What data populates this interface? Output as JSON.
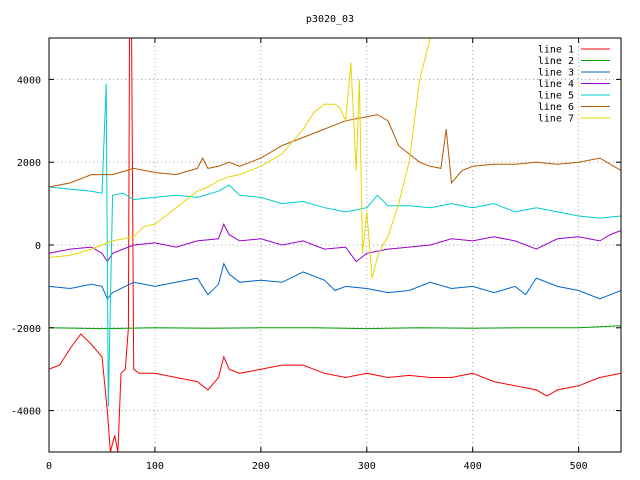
{
  "chart_data": {
    "type": "line",
    "title": "p3020_03",
    "xlabel": "",
    "ylabel": "",
    "xlim": [
      0,
      540
    ],
    "ylim": [
      -5000,
      5000
    ],
    "x_ticks": [
      0,
      100,
      200,
      300,
      400,
      500
    ],
    "y_ticks": [
      -4000,
      -2000,
      0,
      2000,
      4000
    ],
    "grid": true,
    "legend_position": "top-right",
    "series": [
      {
        "name": "line 1",
        "color": "#ff0000",
        "points": [
          [
            0,
            -3000
          ],
          [
            10,
            -2900
          ],
          [
            20,
            -2500
          ],
          [
            30,
            -2150
          ],
          [
            40,
            -2400
          ],
          [
            50,
            -2700
          ],
          [
            55,
            -4000
          ],
          [
            58,
            -5000
          ],
          [
            62,
            -4600
          ],
          [
            65,
            -5000
          ],
          [
            68,
            -3100
          ],
          [
            72,
            -3000
          ],
          [
            75,
            -2000
          ],
          [
            76,
            5000
          ],
          [
            78,
            5000
          ],
          [
            80,
            -3000
          ],
          [
            85,
            -3100
          ],
          [
            100,
            -3100
          ],
          [
            120,
            -3200
          ],
          [
            140,
            -3300
          ],
          [
            150,
            -3500
          ],
          [
            160,
            -3200
          ],
          [
            165,
            -2700
          ],
          [
            170,
            -3000
          ],
          [
            180,
            -3100
          ],
          [
            200,
            -3000
          ],
          [
            220,
            -2900
          ],
          [
            240,
            -2900
          ],
          [
            260,
            -3100
          ],
          [
            280,
            -3200
          ],
          [
            300,
            -3100
          ],
          [
            320,
            -3200
          ],
          [
            340,
            -3150
          ],
          [
            360,
            -3200
          ],
          [
            380,
            -3200
          ],
          [
            400,
            -3100
          ],
          [
            420,
            -3300
          ],
          [
            440,
            -3400
          ],
          [
            460,
            -3500
          ],
          [
            470,
            -3650
          ],
          [
            480,
            -3500
          ],
          [
            500,
            -3400
          ],
          [
            520,
            -3200
          ],
          [
            540,
            -3100
          ]
        ]
      },
      {
        "name": "line 2",
        "color": "#00a000",
        "points": [
          [
            0,
            -2000
          ],
          [
            50,
            -2020
          ],
          [
            100,
            -2000
          ],
          [
            150,
            -2010
          ],
          [
            200,
            -2000
          ],
          [
            250,
            -2000
          ],
          [
            300,
            -2020
          ],
          [
            350,
            -2000
          ],
          [
            400,
            -2010
          ],
          [
            450,
            -2000
          ],
          [
            500,
            -2000
          ],
          [
            540,
            -1950
          ]
        ]
      },
      {
        "name": "line 3",
        "color": "#0066cc",
        "points": [
          [
            0,
            -1000
          ],
          [
            20,
            -1050
          ],
          [
            40,
            -950
          ],
          [
            50,
            -1000
          ],
          [
            55,
            -1300
          ],
          [
            60,
            -1150
          ],
          [
            80,
            -900
          ],
          [
            100,
            -1000
          ],
          [
            120,
            -900
          ],
          [
            140,
            -800
          ],
          [
            150,
            -1200
          ],
          [
            160,
            -950
          ],
          [
            165,
            -450
          ],
          [
            170,
            -700
          ],
          [
            180,
            -900
          ],
          [
            200,
            -850
          ],
          [
            220,
            -900
          ],
          [
            240,
            -650
          ],
          [
            260,
            -850
          ],
          [
            270,
            -1100
          ],
          [
            280,
            -1000
          ],
          [
            300,
            -1050
          ],
          [
            320,
            -1150
          ],
          [
            340,
            -1100
          ],
          [
            360,
            -900
          ],
          [
            380,
            -1050
          ],
          [
            400,
            -1000
          ],
          [
            420,
            -1150
          ],
          [
            440,
            -1000
          ],
          [
            450,
            -1200
          ],
          [
            460,
            -800
          ],
          [
            480,
            -1000
          ],
          [
            500,
            -1100
          ],
          [
            520,
            -1300
          ],
          [
            530,
            -1200
          ],
          [
            540,
            -1100
          ]
        ]
      },
      {
        "name": "line 4",
        "color": "#9900cc",
        "points": [
          [
            0,
            -200
          ],
          [
            20,
            -100
          ],
          [
            40,
            -50
          ],
          [
            50,
            -200
          ],
          [
            55,
            -400
          ],
          [
            60,
            -200
          ],
          [
            70,
            -100
          ],
          [
            80,
            0
          ],
          [
            100,
            50
          ],
          [
            120,
            -50
          ],
          [
            140,
            100
          ],
          [
            160,
            150
          ],
          [
            165,
            500
          ],
          [
            170,
            250
          ],
          [
            180,
            100
          ],
          [
            200,
            150
          ],
          [
            220,
            0
          ],
          [
            240,
            100
          ],
          [
            260,
            -100
          ],
          [
            280,
            -50
          ],
          [
            290,
            -400
          ],
          [
            300,
            -200
          ],
          [
            320,
            -100
          ],
          [
            340,
            -50
          ],
          [
            360,
            0
          ],
          [
            380,
            150
          ],
          [
            400,
            100
          ],
          [
            420,
            200
          ],
          [
            440,
            100
          ],
          [
            460,
            -100
          ],
          [
            480,
            150
          ],
          [
            500,
            200
          ],
          [
            520,
            100
          ],
          [
            530,
            250
          ],
          [
            540,
            350
          ]
        ]
      },
      {
        "name": "line 5",
        "color": "#00cccc",
        "points": [
          [
            0,
            1400
          ],
          [
            20,
            1350
          ],
          [
            40,
            1300
          ],
          [
            50,
            1250
          ],
          [
            54,
            3900
          ],
          [
            56,
            -3900
          ],
          [
            60,
            1200
          ],
          [
            70,
            1250
          ],
          [
            80,
            1100
          ],
          [
            100,
            1150
          ],
          [
            120,
            1200
          ],
          [
            140,
            1150
          ],
          [
            160,
            1300
          ],
          [
            170,
            1450
          ],
          [
            180,
            1200
          ],
          [
            200,
            1150
          ],
          [
            220,
            1000
          ],
          [
            240,
            1050
          ],
          [
            260,
            900
          ],
          [
            280,
            800
          ],
          [
            300,
            900
          ],
          [
            310,
            1200
          ],
          [
            320,
            950
          ],
          [
            340,
            950
          ],
          [
            360,
            900
          ],
          [
            380,
            1000
          ],
          [
            400,
            900
          ],
          [
            420,
            1000
          ],
          [
            440,
            800
          ],
          [
            460,
            900
          ],
          [
            480,
            800
          ],
          [
            500,
            700
          ],
          [
            520,
            650
          ],
          [
            540,
            700
          ]
        ]
      },
      {
        "name": "line 6",
        "color": "#b35900",
        "points": [
          [
            0,
            1400
          ],
          [
            20,
            1500
          ],
          [
            40,
            1700
          ],
          [
            60,
            1700
          ],
          [
            80,
            1850
          ],
          [
            100,
            1750
          ],
          [
            120,
            1700
          ],
          [
            140,
            1850
          ],
          [
            145,
            2100
          ],
          [
            150,
            1850
          ],
          [
            160,
            1900
          ],
          [
            170,
            2000
          ],
          [
            180,
            1900
          ],
          [
            200,
            2100
          ],
          [
            220,
            2400
          ],
          [
            240,
            2600
          ],
          [
            260,
            2800
          ],
          [
            280,
            3000
          ],
          [
            300,
            3100
          ],
          [
            310,
            3150
          ],
          [
            320,
            3000
          ],
          [
            330,
            2400
          ],
          [
            340,
            2200
          ],
          [
            350,
            2000
          ],
          [
            360,
            1900
          ],
          [
            370,
            1850
          ],
          [
            375,
            2800
          ],
          [
            380,
            1500
          ],
          [
            390,
            1800
          ],
          [
            400,
            1900
          ],
          [
            420,
            1950
          ],
          [
            440,
            1950
          ],
          [
            460,
            2000
          ],
          [
            480,
            1950
          ],
          [
            500,
            2000
          ],
          [
            520,
            2100
          ],
          [
            540,
            1800
          ]
        ]
      },
      {
        "name": "line 7",
        "color": "#e6d600",
        "points": [
          [
            0,
            -300
          ],
          [
            20,
            -250
          ],
          [
            40,
            -100
          ],
          [
            60,
            100
          ],
          [
            80,
            200
          ],
          [
            90,
            450
          ],
          [
            100,
            500
          ],
          [
            110,
            700
          ],
          [
            120,
            900
          ],
          [
            130,
            1100
          ],
          [
            140,
            1300
          ],
          [
            150,
            1400
          ],
          [
            160,
            1550
          ],
          [
            170,
            1650
          ],
          [
            180,
            1700
          ],
          [
            200,
            1900
          ],
          [
            220,
            2200
          ],
          [
            240,
            2800
          ],
          [
            250,
            3200
          ],
          [
            260,
            3400
          ],
          [
            270,
            3400
          ],
          [
            275,
            3300
          ],
          [
            280,
            3000
          ],
          [
            285,
            4400
          ],
          [
            290,
            1800
          ],
          [
            293,
            4000
          ],
          [
            296,
            -200
          ],
          [
            300,
            800
          ],
          [
            305,
            -800
          ],
          [
            310,
            -300
          ],
          [
            315,
            0
          ],
          [
            320,
            200
          ],
          [
            330,
            1000
          ],
          [
            340,
            2000
          ],
          [
            345,
            3000
          ],
          [
            350,
            4000
          ],
          [
            355,
            4500
          ],
          [
            360,
            5000
          ],
          [
            370,
            5000
          ],
          [
            380,
            5000
          ]
        ]
      }
    ]
  }
}
